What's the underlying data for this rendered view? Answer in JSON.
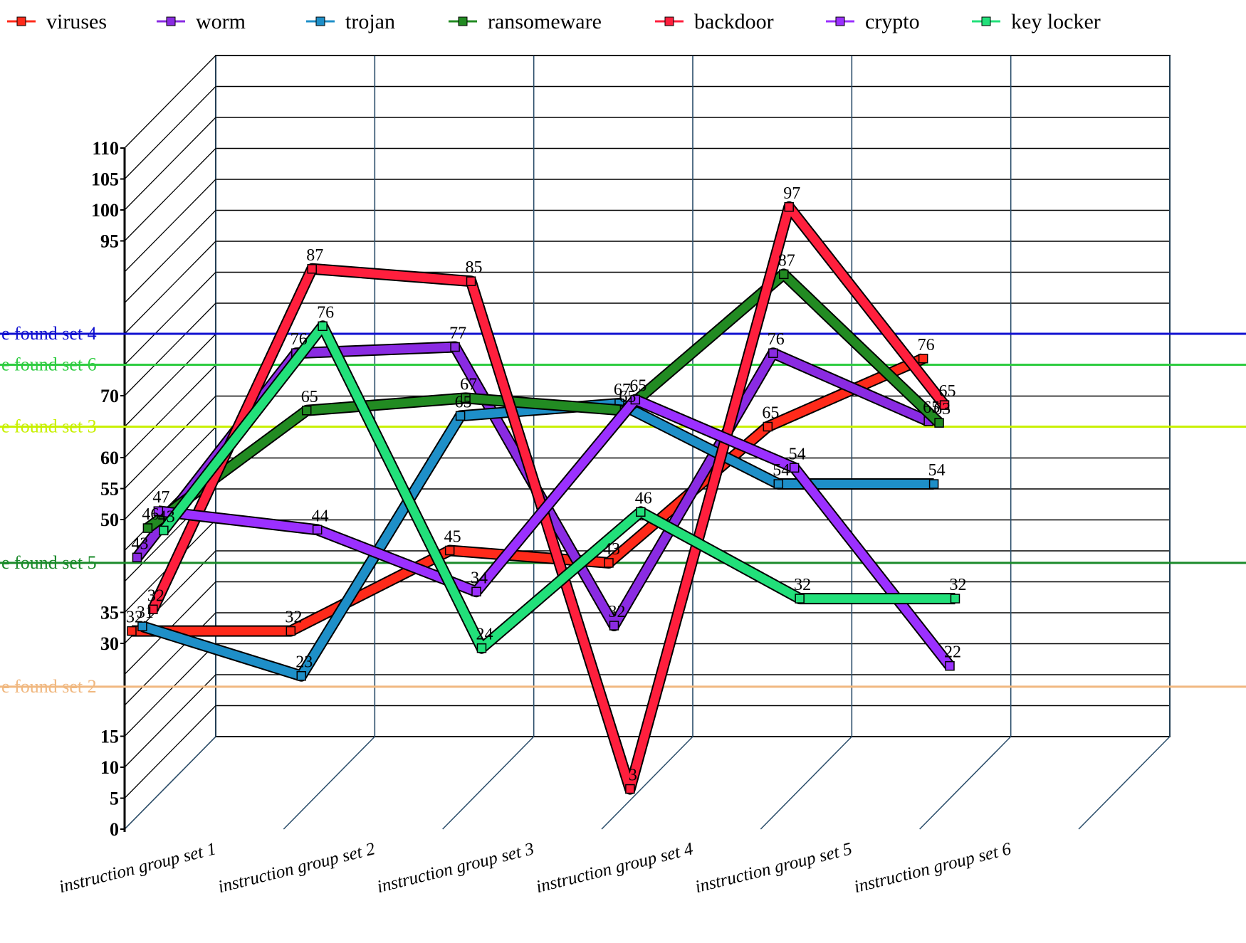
{
  "chart_data": {
    "type": "line",
    "title": "",
    "xlabel": "",
    "ylabel": "",
    "ylim": [
      0,
      110
    ],
    "y_ticks": [
      0,
      5,
      10,
      15,
      30,
      35,
      50,
      55,
      60,
      70,
      95,
      100,
      105,
      110
    ],
    "categories": [
      "instruction group set 1",
      "instruction group set 2",
      "instruction group set 3",
      "instruction group set 4",
      "instruction group set 5",
      "instruction group set 6"
    ],
    "legend_position": "top",
    "grid": true,
    "series": [
      {
        "name": "viruses",
        "color": "#ff2a1a",
        "values": [
          32,
          32,
          45,
          43,
          65,
          76
        ]
      },
      {
        "name": "worm",
        "color": "#8a2be2",
        "values": [
          43,
          76,
          77,
          32,
          76,
          65
        ]
      },
      {
        "name": "trojan",
        "color": "#1e8fc8",
        "values": [
          31,
          23,
          65,
          67,
          54,
          54
        ]
      },
      {
        "name": "ransomeware",
        "color": "#228b22",
        "values": [
          46,
          65,
          67,
          65,
          87,
          63
        ]
      },
      {
        "name": "backdoor",
        "color": "#ff1f3d",
        "values": [
          32,
          87,
          85,
          3,
          97,
          65
        ]
      },
      {
        "name": "crypto",
        "color": "#9b30ff",
        "values": [
          47,
          44,
          34,
          65,
          54,
          22
        ]
      },
      {
        "name": "key locker",
        "color": "#22e07a",
        "values": [
          43,
          76,
          24,
          46,
          32,
          32
        ]
      }
    ],
    "reference_lines": [
      {
        "label": "e found set 4",
        "value": 80,
        "color": "#1010d0"
      },
      {
        "label": "e found set 6",
        "value": 75,
        "color": "#2ecc40"
      },
      {
        "label": "e found set 3",
        "value": 65,
        "color": "#c8f000"
      },
      {
        "label": "e found set 5",
        "value": 43,
        "color": "#1a8a2a"
      },
      {
        "label": "e found set 2",
        "value": 23,
        "color": "#f0b880"
      }
    ]
  }
}
